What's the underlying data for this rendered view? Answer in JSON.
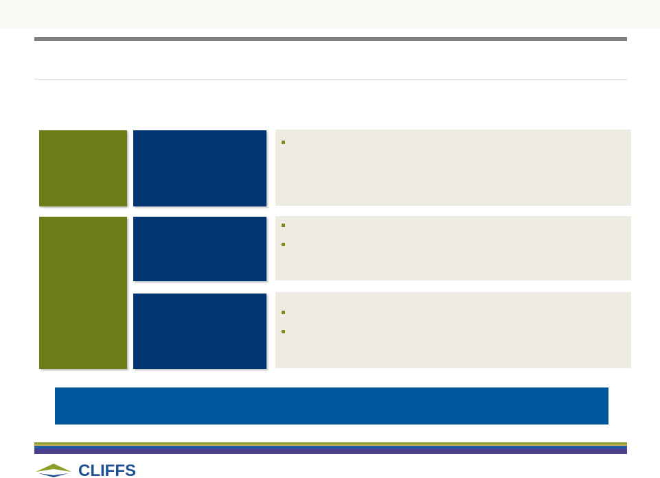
{
  "logo": {
    "text": "CLIFFS"
  }
}
